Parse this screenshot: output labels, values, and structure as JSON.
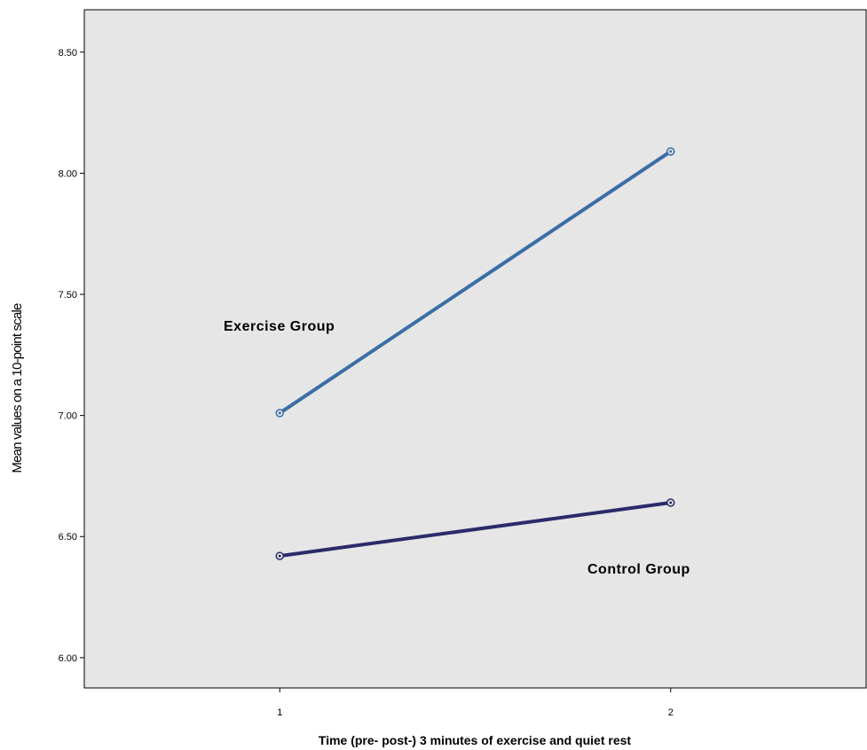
{
  "chart_data": {
    "type": "line",
    "title": "",
    "xlabel": "Time (pre- post-) 3 minutes of exercise and quiet rest",
    "ylabel": "Mean values on a 10-point scale",
    "categories": [
      "1",
      "2"
    ],
    "xlim": [
      0.5,
      2.5
    ],
    "ylim": [
      5.875,
      8.675
    ],
    "yticks": [
      "6.00",
      "6.50",
      "7.00",
      "7.50",
      "8.00",
      "8.50"
    ],
    "grid": false,
    "legend": "none",
    "plot_background": "#e6e6e6",
    "series": [
      {
        "name": "Exercise Group",
        "color": "#3a6ea5",
        "values": [
          7.01,
          8.09
        ]
      },
      {
        "name": "Control Group",
        "color": "#2b2b6b",
        "values": [
          6.42,
          6.64
        ]
      }
    ]
  }
}
